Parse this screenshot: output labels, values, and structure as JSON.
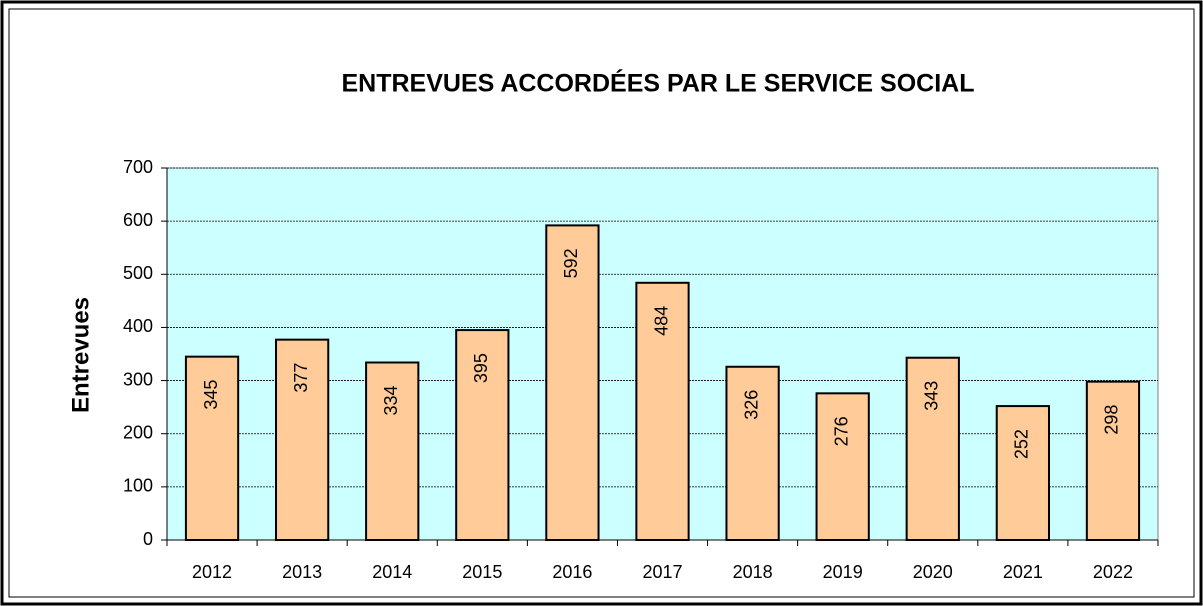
{
  "chart_data": {
    "type": "bar",
    "title": "ENTREVUES ACCORDÉES PAR LE SERVICE SOCIAL",
    "y_label": "Entrevues",
    "categories": [
      "2012",
      "2013",
      "2014",
      "2015",
      "2016",
      "2017",
      "2018",
      "2019",
      "2020",
      "2021",
      "2022"
    ],
    "values": [
      345,
      377,
      334,
      395,
      592,
      484,
      326,
      276,
      343,
      252,
      298
    ],
    "color": "#ffcc99",
    "background": "#ccffff",
    "ylim": [
      0,
      700
    ],
    "yticks": [
      0,
      100,
      200,
      300,
      400,
      500,
      600,
      700
    ],
    "grid": true
  }
}
